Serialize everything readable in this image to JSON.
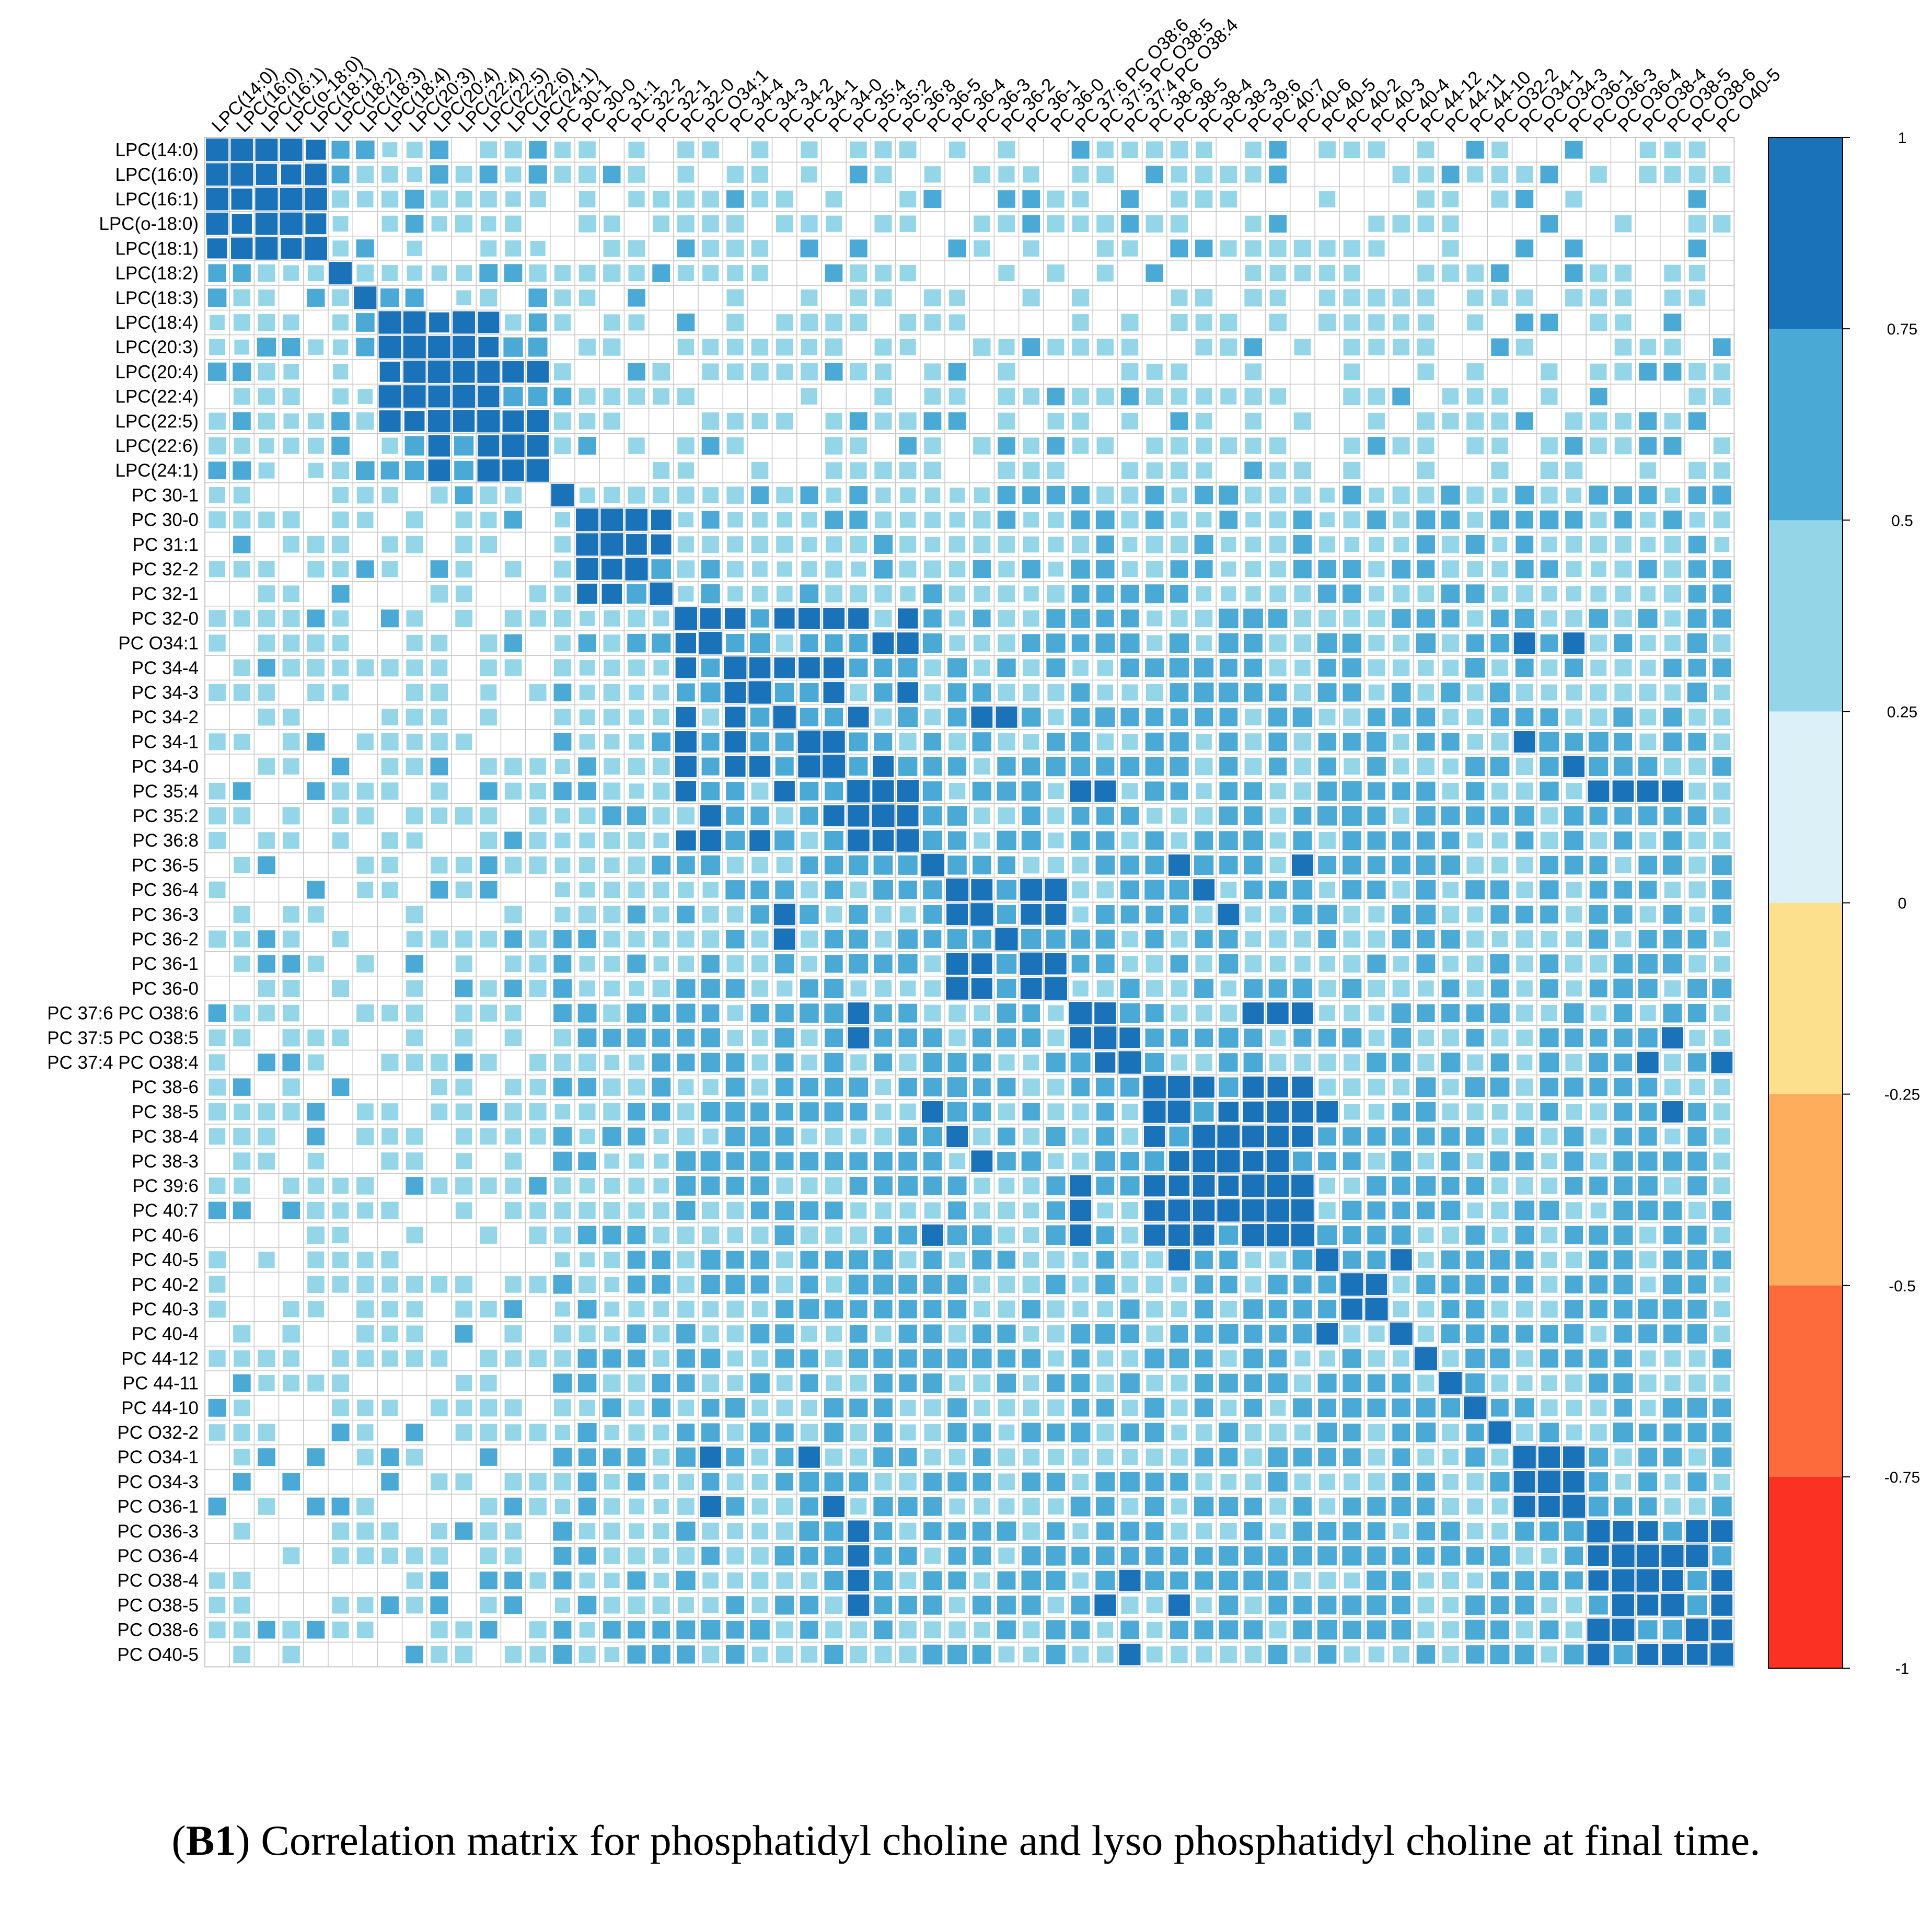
{
  "chart_data": {
    "type": "heatmap",
    "title": "",
    "variables": [
      "LPC(14:0)",
      "LPC(16:0)",
      "LPC(16:1)",
      "LPC(o-18:0)",
      "LPC(18:1)",
      "LPC(18:2)",
      "LPC(18:3)",
      "LPC(18:4)",
      "LPC(20:3)",
      "LPC(20:4)",
      "LPC(22:4)",
      "LPC(22:5)",
      "LPC(22:6)",
      "LPC(24:1)",
      "PC 30-1",
      "PC 30-0",
      "PC 31:1",
      "PC 32-2",
      "PC 32-1",
      "PC 32-0",
      "PC O34:1",
      "PC 34-4",
      "PC 34-3",
      "PC 34-2",
      "PC 34-1",
      "PC 34-0",
      "PC 35:4",
      "PC 35:2",
      "PC 36:8",
      "PC 36-5",
      "PC 36-4",
      "PC 36-3",
      "PC 36-2",
      "PC 36-1",
      "PC 36-0",
      "PC 37:6 PC O38:6",
      "PC 37:5 PC O38:5",
      "PC 37:4 PC O38:4",
      "PC 38-6",
      "PC 38-5",
      "PC 38-4",
      "PC 38-3",
      "PC 39:6",
      "PC 40:7",
      "PC 40-6",
      "PC 40-5",
      "PC 40-2",
      "PC 40-3",
      "PC 40-4",
      "PC 44-12",
      "PC 44-11",
      "PC 44-10",
      "PC O32-2",
      "PC O34-1",
      "PC O34-3",
      "PC O36-1",
      "PC O36-3",
      "PC O36-4",
      "PC O38-4",
      "PC O38-5",
      "PC O38-6",
      "PC O40-5"
    ],
    "blocks": [
      {
        "start": 0,
        "end": 4,
        "value": 0.95
      },
      {
        "start": 7,
        "end": 11,
        "value": 0.95
      },
      {
        "start": 8,
        "end": 13,
        "value": 0.8
      },
      {
        "start": 15,
        "end": 18,
        "value": 0.8
      },
      {
        "start": 19,
        "end": 28,
        "value": 0.68
      },
      {
        "start": 21,
        "end": 25,
        "value": 0.8
      },
      {
        "start": 26,
        "end": 28,
        "value": 0.85
      },
      {
        "start": 30,
        "end": 34,
        "value": 0.85
      },
      {
        "start": 35,
        "end": 37,
        "value": 0.9
      },
      {
        "start": 38,
        "end": 44,
        "value": 0.85
      },
      {
        "start": 46,
        "end": 47,
        "value": 0.95
      },
      {
        "start": 53,
        "end": 55,
        "value": 0.85
      },
      {
        "start": 56,
        "end": 61,
        "value": 0.85
      },
      {
        "start": 19,
        "end": 61,
        "value": 0.55
      }
    ],
    "strong_pairs": [
      [
        "PC O34:1",
        "PC 35:2"
      ],
      [
        "PC O34:1",
        "PC 36:8"
      ],
      [
        "PC O34:1",
        "PC O34-1"
      ],
      [
        "PC O34:1",
        "PC O36-1"
      ],
      [
        "PC 32-0",
        "PC 34-1"
      ],
      [
        "PC 32-0",
        "PC 34-0"
      ],
      [
        "PC 34-2",
        "PC 36-3"
      ],
      [
        "PC 34-2",
        "PC 36-2"
      ],
      [
        "PC 35:4",
        "PC O36-3"
      ],
      [
        "PC 35:4",
        "PC O36-4"
      ],
      [
        "PC 35:4",
        "PC O38-4"
      ],
      [
        "PC 35:4",
        "PC O38-5"
      ],
      [
        "PC 35:4",
        "PC 37:6 PC O38:6"
      ],
      [
        "PC 35:4",
        "PC 37:5 PC O38:5"
      ],
      [
        "PC 37:6 PC O38:6",
        "PC 39:6"
      ],
      [
        "PC 37:6 PC O38:6",
        "PC 40:7"
      ],
      [
        "PC 37:6 PC O38:6",
        "PC 40-6"
      ],
      [
        "PC 37:5 PC O38:5",
        "PC O38-5"
      ],
      [
        "PC 37:4 PC O38:4",
        "PC O38-4"
      ],
      [
        "PC 36-5",
        "PC 38-5"
      ],
      [
        "PC 36-5",
        "PC 40-6"
      ],
      [
        "PC 36-3",
        "PC 38-3"
      ],
      [
        "PC 36-4",
        "PC 38-4"
      ],
      [
        "PC 34-1",
        "PC O34-1"
      ],
      [
        "PC 34-0",
        "PC O36-1"
      ],
      [
        "PC 40-5",
        "PC 40-4"
      ],
      [
        "PC 40-5",
        "PC 38-5"
      ],
      [
        "PC 38-5",
        "PC O38-5"
      ],
      [
        "PC O40-5",
        "PC 37:4 PC O38:4"
      ]
    ],
    "colorbar": {
      "ticks": [
        "1",
        "0.75",
        "0.5",
        "0.25",
        "0",
        "-0.25",
        "-0.5",
        "-0.75",
        "-1"
      ],
      "colors": [
        "#1a73b8",
        "#4aaad5",
        "#94d5e8",
        "#dbf1f7",
        "#fde08e",
        "#fdad5c",
        "#fd6a3c",
        "#fb3123"
      ]
    },
    "cell_colors": {
      "strong": "#1a73b8",
      "medium": "#4aaad5",
      "light": "#94d5e8",
      "grid": "#c8c8c8"
    }
  },
  "caption": {
    "label": "B1",
    "text": " Correlation matrix for phosphatidyl choline and lyso phosphatidyl choline at final time."
  }
}
